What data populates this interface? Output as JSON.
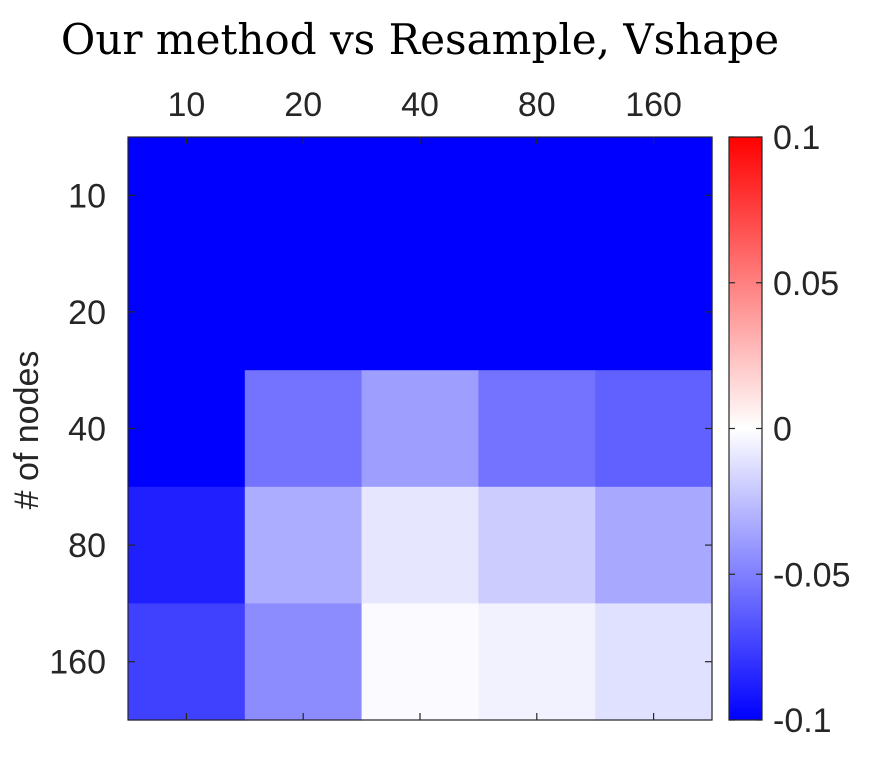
{
  "chart_data": {
    "type": "heatmap",
    "title": "Our method vs Resample, Vshape",
    "xlabel": "",
    "ylabel": "# of nodes",
    "x_categories": [
      "10",
      "20",
      "40",
      "80",
      "160"
    ],
    "y_categories": [
      "10",
      "20",
      "40",
      "80",
      "160"
    ],
    "x_axis_location": "top",
    "values": [
      [
        -0.1,
        -0.1,
        -0.1,
        -0.1,
        -0.1
      ],
      [
        -0.1,
        -0.1,
        -0.1,
        -0.1,
        -0.1
      ],
      [
        -0.1,
        -0.055,
        -0.038,
        -0.055,
        -0.062
      ],
      [
        -0.088,
        -0.032,
        -0.01,
        -0.02,
        -0.034
      ],
      [
        -0.075,
        -0.045,
        -0.002,
        -0.005,
        -0.012
      ]
    ],
    "colorbar": {
      "range": [
        -0.1,
        0.1
      ],
      "colors": {
        "low": "#0000ff",
        "mid": "#ffffff",
        "high": "#ff0000"
      },
      "tick_values": [
        0.1,
        0.05,
        0,
        -0.05,
        -0.1
      ],
      "tick_labels": [
        "0.1",
        "0.05",
        "0",
        "-0.05",
        "-0.1"
      ]
    }
  }
}
